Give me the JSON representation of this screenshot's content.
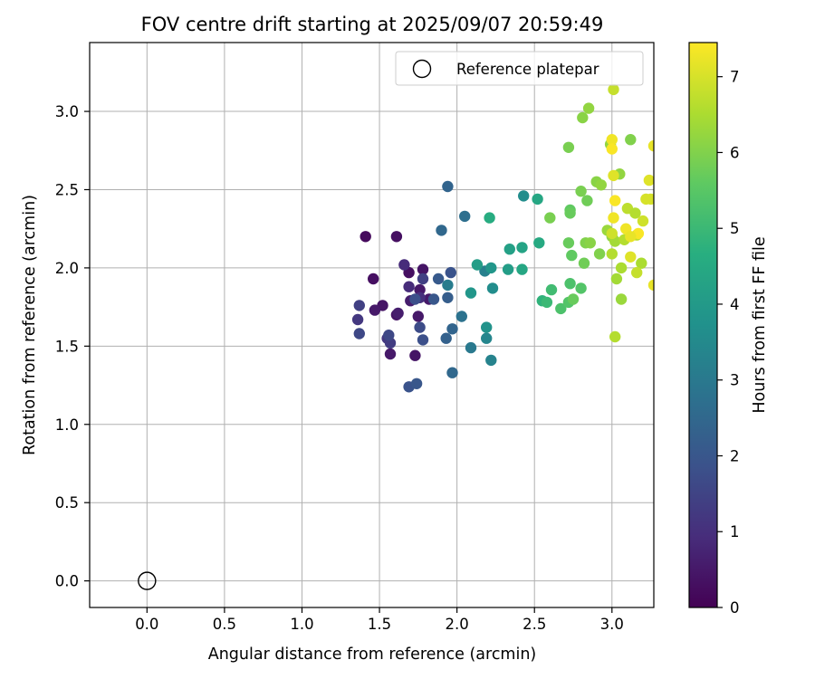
{
  "chart_data": {
    "type": "scatter",
    "title": "FOV centre drift starting at 2025/09/07 20:59:49",
    "xlabel": "Angular distance from reference (arcmin)",
    "ylabel": "Rotation from reference (arcmin)",
    "xlim": [
      -0.37,
      3.27
    ],
    "ylim": [
      -0.17,
      3.44
    ],
    "x_ticks": [
      "0.0",
      "0.5",
      "1.0",
      "1.5",
      "2.0",
      "2.5",
      "3.0"
    ],
    "y_ticks": [
      "0.0",
      "0.5",
      "1.0",
      "1.5",
      "2.0",
      "2.5",
      "3.0"
    ],
    "grid": true,
    "legend": {
      "placement": "top-right",
      "entries": [
        "Reference platepar"
      ]
    },
    "reference_point": {
      "x": 0.0,
      "y": 0.0,
      "marker": "open-circle"
    },
    "colorbar": {
      "label": "Hours from first FF file",
      "range": [
        0,
        7.45
      ],
      "ticks": [
        "0",
        "1",
        "2",
        "3",
        "4",
        "5",
        "6",
        "7"
      ],
      "colormap": "viridis"
    },
    "series": [
      {
        "color_by": "hours",
        "points": [
          [
            1.41,
            2.2,
            0.2
          ],
          [
            1.61,
            2.2,
            0.3
          ],
          [
            1.46,
            1.93,
            0.3
          ],
          [
            1.52,
            1.76,
            0.4
          ],
          [
            1.47,
            1.73,
            0.5
          ],
          [
            1.57,
            1.45,
            0.5
          ],
          [
            1.61,
            1.7,
            0.4
          ],
          [
            1.69,
            1.97,
            0.3
          ],
          [
            1.73,
            1.44,
            0.4
          ],
          [
            1.75,
            1.69,
            0.5
          ],
          [
            1.78,
            1.99,
            0.4
          ],
          [
            1.76,
            1.86,
            0.5
          ],
          [
            1.7,
            1.79,
            0.6
          ],
          [
            1.82,
            1.8,
            0.5
          ],
          [
            1.62,
            1.71,
            0.6
          ],
          [
            1.66,
            2.02,
            0.9
          ],
          [
            1.69,
            1.88,
            0.9
          ],
          [
            1.76,
            1.81,
            1.0
          ],
          [
            1.55,
            1.55,
            1.2
          ],
          [
            1.57,
            1.52,
            1.3
          ],
          [
            1.36,
            1.67,
            1.2
          ],
          [
            1.37,
            1.76,
            1.4
          ],
          [
            1.37,
            1.58,
            1.6
          ],
          [
            1.56,
            1.57,
            1.6
          ],
          [
            1.78,
            1.93,
            1.4
          ],
          [
            1.76,
            1.62,
            1.7
          ],
          [
            1.73,
            1.8,
            1.8
          ],
          [
            1.85,
            1.8,
            2.0
          ],
          [
            1.78,
            1.54,
            1.8
          ],
          [
            1.69,
            1.24,
            1.9
          ],
          [
            1.74,
            1.26,
            2.0
          ],
          [
            1.88,
            1.93,
            2.1
          ],
          [
            1.96,
            1.97,
            1.9
          ],
          [
            1.94,
            1.81,
            2.2
          ],
          [
            1.93,
            1.55,
            2.3
          ],
          [
            1.97,
            1.61,
            2.4
          ],
          [
            1.97,
            1.33,
            2.5
          ],
          [
            1.9,
            2.24,
            2.5
          ],
          [
            1.94,
            2.52,
            2.4
          ],
          [
            2.05,
            2.33,
            2.7
          ],
          [
            2.03,
            1.69,
            2.8
          ],
          [
            2.09,
            1.49,
            3.0
          ],
          [
            1.94,
            1.89,
            3.1
          ],
          [
            2.18,
            1.98,
            3.2
          ],
          [
            2.19,
            1.55,
            3.4
          ],
          [
            2.22,
            1.41,
            3.3
          ],
          [
            2.23,
            1.87,
            3.6
          ],
          [
            2.19,
            1.62,
            3.8
          ],
          [
            2.09,
            1.84,
            3.9
          ],
          [
            2.13,
            2.02,
            4.1
          ],
          [
            2.22,
            2.0,
            3.9
          ],
          [
            2.43,
            2.46,
            3.6
          ],
          [
            2.33,
            1.99,
            4.1
          ],
          [
            2.34,
            2.12,
            4.2
          ],
          [
            2.42,
            1.99,
            4.4
          ],
          [
            2.42,
            2.13,
            4.3
          ],
          [
            2.21,
            2.32,
            4.6
          ],
          [
            2.52,
            2.44,
            4.4
          ],
          [
            2.53,
            2.16,
            4.5
          ],
          [
            2.55,
            1.79,
            4.8
          ],
          [
            2.58,
            1.78,
            5.0
          ],
          [
            2.61,
            1.86,
            5.1
          ],
          [
            2.67,
            1.74,
            5.3
          ],
          [
            2.72,
            1.78,
            5.4
          ],
          [
            2.73,
            1.9,
            5.3
          ],
          [
            2.75,
            1.8,
            5.7
          ],
          [
            2.8,
            1.87,
            5.4
          ],
          [
            2.72,
            2.16,
            5.7
          ],
          [
            2.74,
            2.08,
            5.6
          ],
          [
            2.82,
            2.03,
            5.8
          ],
          [
            2.73,
            2.37,
            5.6
          ],
          [
            2.73,
            2.35,
            5.7
          ],
          [
            2.6,
            2.32,
            5.9
          ],
          [
            2.72,
            2.77,
            5.9
          ],
          [
            2.8,
            2.49,
            5.9
          ],
          [
            2.84,
            2.43,
            5.8
          ],
          [
            2.83,
            2.16,
            6.0
          ],
          [
            2.86,
            2.16,
            6.1
          ],
          [
            2.92,
            2.09,
            6.0
          ],
          [
            2.9,
            2.55,
            6.1
          ],
          [
            2.93,
            2.53,
            6.2
          ],
          [
            2.81,
            2.96,
            6.1
          ],
          [
            2.85,
            3.02,
            6.2
          ],
          [
            2.99,
            2.79,
            6.2
          ],
          [
            3.12,
            2.82,
            6.0
          ],
          [
            2.97,
            2.24,
            6.3
          ],
          [
            3.0,
            2.2,
            6.2
          ],
          [
            3.02,
            2.17,
            6.4
          ],
          [
            3.05,
            2.6,
            6.2
          ],
          [
            3.03,
            1.93,
            6.4
          ],
          [
            3.06,
            2.0,
            6.5
          ],
          [
            3.06,
            1.8,
            6.3
          ],
          [
            3.02,
            1.56,
            6.6
          ],
          [
            3.0,
            2.09,
            6.6
          ],
          [
            3.08,
            2.18,
            6.6
          ],
          [
            3.1,
            2.38,
            6.7
          ],
          [
            3.15,
            2.35,
            6.6
          ],
          [
            3.16,
            2.21,
            6.7
          ],
          [
            3.19,
            2.03,
            6.5
          ],
          [
            3.16,
            1.97,
            6.8
          ],
          [
            3.2,
            2.3,
            6.9
          ],
          [
            3.22,
            2.44,
            7.0
          ],
          [
            3.25,
            2.44,
            7.0
          ],
          [
            3.24,
            2.56,
            7.1
          ],
          [
            3.27,
            2.78,
            7.2
          ],
          [
            3.27,
            1.89,
            7.2
          ],
          [
            3.12,
            2.07,
            7.1
          ],
          [
            3.09,
            2.25,
            7.3
          ],
          [
            3.17,
            2.22,
            7.4
          ],
          [
            3.0,
            2.82,
            7.3
          ],
          [
            3.0,
            2.76,
            7.4
          ],
          [
            3.01,
            2.32,
            7.3
          ],
          [
            3.02,
            2.43,
            7.4
          ],
          [
            3.01,
            2.59,
            7.1
          ],
          [
            3.01,
            3.14,
            6.8
          ],
          [
            3.0,
            2.22,
            6.9
          ],
          [
            3.12,
            2.2,
            7.2
          ]
        ]
      }
    ]
  }
}
